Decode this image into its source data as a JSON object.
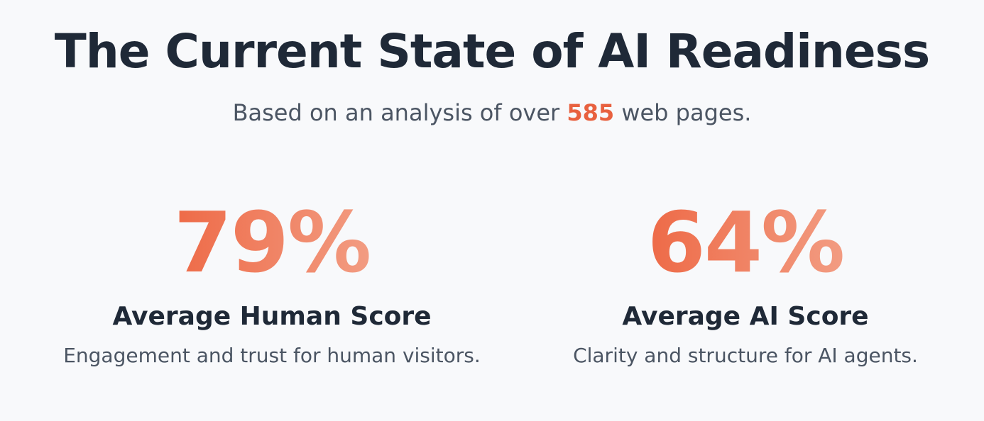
{
  "header": {
    "title": "The Current State of AI Readiness",
    "subtitle": {
      "before": "Based on an analysis of over",
      "count": "585",
      "after": "web pages."
    }
  },
  "stats": [
    {
      "value": "79%",
      "label": "Average Human Score",
      "description": "Engagement and trust for human visitors."
    },
    {
      "value": "64%",
      "label": "Average AI Score",
      "description": "Clarity and structure for AI agents."
    }
  ]
}
